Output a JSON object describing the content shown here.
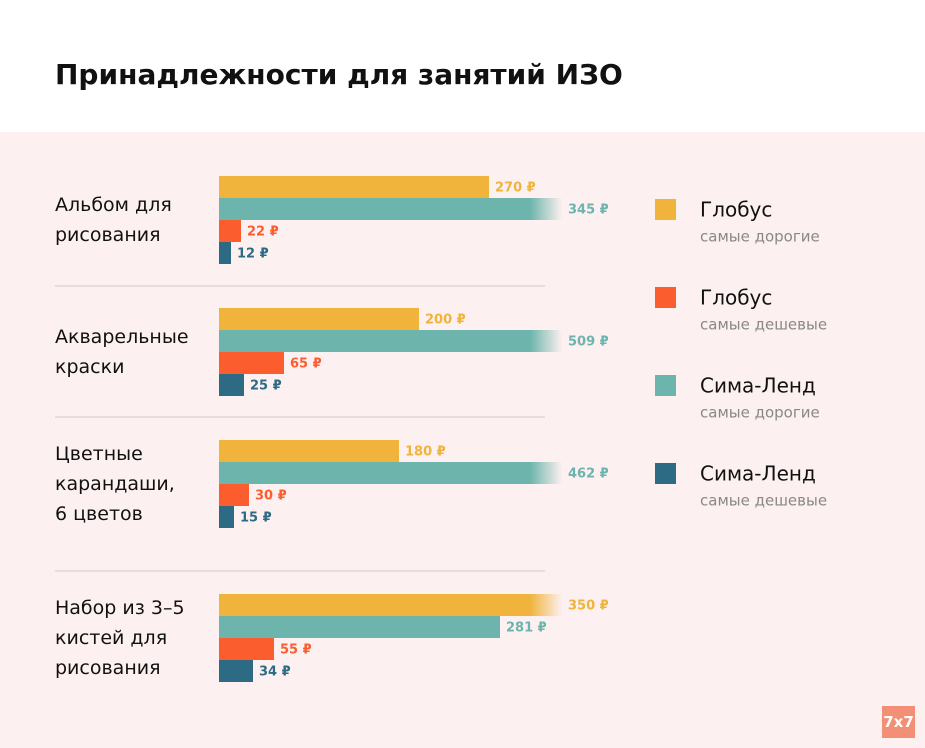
{
  "chart_data": {
    "type": "hbar-grouped",
    "title": "Принадлежности для занятий ИЗО",
    "categories": [
      "Альбом для\nрисования",
      "Акварельные\nкраски",
      "Цветные\nкарандаши,\n6 цветов",
      "Набор из 3–5\nкистей для\nрисования"
    ],
    "series": [
      {
        "name": "Глобус",
        "subtitle": "самые дорогие",
        "color": "#f0b33c",
        "values": [
          270,
          200,
          180,
          350
        ],
        "value_labels": [
          "270 ₽",
          "200 ₽",
          "180 ₽",
          "350 ₽"
        ]
      },
      {
        "name": "Глобус",
        "subtitle": "самые дешевые",
        "color": "#fb5d2e",
        "values": [
          22,
          65,
          30,
          55
        ],
        "value_labels": [
          "22 ₽",
          "65 ₽",
          "30 ₽",
          "55 ₽"
        ]
      },
      {
        "name": "Сима-Ленд",
        "subtitle": "самые дорогие",
        "color": "#6db4ac",
        "values": [
          345,
          509,
          462,
          281
        ],
        "value_labels": [
          "345 ₽",
          "509 ₽",
          "462 ₽",
          "281 ₽"
        ]
      },
      {
        "name": "Сима-Ленд",
        "subtitle": "самые дешевые",
        "color": "#2d6b85",
        "values": [
          12,
          25,
          15,
          34
        ],
        "value_labels": [
          "12 ₽",
          "25 ₽",
          "15 ₽",
          "34 ₽"
        ]
      }
    ],
    "bar_order": [
      0,
      2,
      1,
      3
    ],
    "xlim": [
      0,
      350
    ],
    "logo": "7x7"
  }
}
